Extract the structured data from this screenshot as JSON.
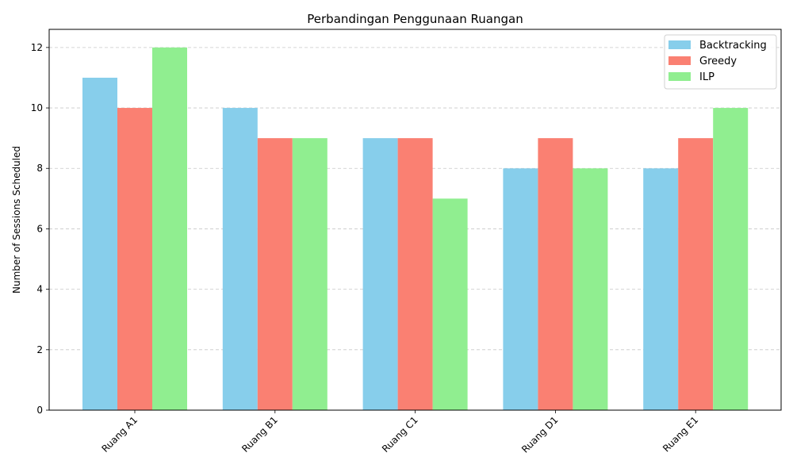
{
  "chart_data": {
    "type": "bar",
    "title": "Perbandingan Penggunaan Ruangan",
    "xlabel": "",
    "ylabel": "Number of Sessions Scheduled",
    "categories": [
      "Ruang A1",
      "Ruang B1",
      "Ruang C1",
      "Ruang D1",
      "Ruang E1"
    ],
    "series": [
      {
        "name": "Backtracking",
        "color": "#87ceeb",
        "values": [
          11,
          10,
          9,
          8,
          8
        ]
      },
      {
        "name": "Greedy",
        "color": "#fa8072",
        "values": [
          10,
          9,
          9,
          9,
          9
        ]
      },
      {
        "name": "ILP",
        "color": "#90ee90",
        "values": [
          12,
          9,
          7,
          8,
          10
        ]
      }
    ],
    "ylim": [
      0,
      12.6
    ],
    "yticks": [
      0,
      2,
      4,
      6,
      8,
      10,
      12
    ],
    "grid": "y-dashed",
    "legend": "top-right",
    "xtick_rotation": 45
  }
}
